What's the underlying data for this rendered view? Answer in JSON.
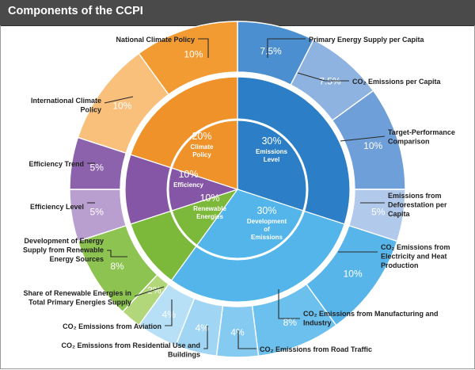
{
  "chart_data": {
    "type": "pie",
    "title": "Components of the CCPI",
    "inner_ring": [
      {
        "label": "Emissions Level",
        "value": 30,
        "display": "30%",
        "color": "#2c7fc6"
      },
      {
        "label": "Development of Emissions",
        "value": 30,
        "display": "30%",
        "color": "#53b5e9"
      },
      {
        "label": "Renewable Energies",
        "value": 10,
        "display": "10%",
        "color": "#7cb83a"
      },
      {
        "label": "Efficiency",
        "value": 10,
        "display": "10%",
        "color": "#8656a6"
      },
      {
        "label": "Climate Policy",
        "value": 20,
        "display": "20%",
        "color": "#f0922a"
      }
    ],
    "outer_ring": [
      {
        "label": "Primary Energy Supply per Capita",
        "value": 7.5,
        "display": "7.5%",
        "color": "#4c8fd0"
      },
      {
        "label": "CO₂ Emissions per Capita",
        "value": 7.5,
        "display": "7.5%",
        "color": "#8fb3e0"
      },
      {
        "label": "Target-Performance Comparison",
        "value": 10,
        "display": "10%",
        "color": "#6f9fd8"
      },
      {
        "label": "Emissions from Deforestation per Capita",
        "value": 5,
        "display": "5%",
        "color": "#b1c9ea"
      },
      {
        "label": "CO₂ Emissions from Electricity and Heat Production",
        "value": 10,
        "display": "10%",
        "color": "#58b5ea"
      },
      {
        "label": "CO₂ Emissions from Manufacturing and Industry",
        "value": 8,
        "display": "8%",
        "color": "#6cc0ee"
      },
      {
        "label": "CO₂ Emissions from Road Traffic",
        "value": 4,
        "display": "4%",
        "color": "#85cbf1"
      },
      {
        "label": "CO₂ Emissions from Residential Use and Buildings",
        "value": 4,
        "display": "4%",
        "color": "#a0d6f4"
      },
      {
        "label": "CO₂ Emissions from Aviation",
        "value": 4,
        "display": "4%",
        "color": "#b7e0f7"
      },
      {
        "label": "Share of Renewable Energies in Total Primary Energies Supply",
        "value": 2,
        "display": "2%",
        "color": "#b2d67a"
      },
      {
        "label": "Development of Energy Supply from Renewable Energy Sources",
        "value": 8,
        "display": "8%",
        "color": "#8dc350"
      },
      {
        "label": "Efficiency Level",
        "value": 5,
        "display": "5%",
        "color": "#b99fd0"
      },
      {
        "label": "Efficiency Trend",
        "value": 5,
        "display": "5%",
        "color": "#8c62ac"
      },
      {
        "label": "International Climate Policy",
        "value": 10,
        "display": "10%",
        "color": "#f9c07c"
      },
      {
        "label": "National Climate Policy",
        "value": 10,
        "display": "10%",
        "color": "#f39b33"
      }
    ]
  }
}
